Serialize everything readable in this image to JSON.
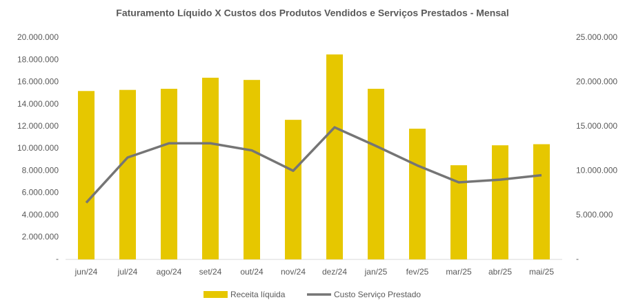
{
  "chart_data": {
    "type": "bar_line",
    "title": "Faturamento Líquido X Custos dos Produtos Vendidos e Serviços Prestados - Mensal",
    "categories": [
      "jun/24",
      "jul/24",
      "ago/24",
      "set/24",
      "out/24",
      "nov/24",
      "dez/24",
      "jan/25",
      "fev/25",
      "mar/25",
      "abr/25",
      "mai/25"
    ],
    "series": [
      {
        "name": "Receita líquida",
        "color": "#e6c700",
        "type": "bar",
        "axis": "y",
        "values": [
          15200000,
          15300000,
          15400000,
          16400000,
          16200000,
          12600000,
          18500000,
          15400000,
          11800000,
          8500000,
          10300000,
          10400000
        ]
      },
      {
        "name": "Custo Serviço Prestado",
        "color": "#757575",
        "type": "line",
        "axis": "y2",
        "values": [
          6400000,
          11500000,
          13100000,
          13100000,
          12300000,
          10000000,
          14900000,
          12800000,
          10600000,
          8700000,
          9000000,
          9500000
        ]
      }
    ],
    "ylim": [
      0,
      20000000
    ],
    "yticks": [
      {
        "value": 0,
        "label": "-"
      },
      {
        "value": 2000000,
        "label": "2.000.000"
      },
      {
        "value": 4000000,
        "label": "4.000.000"
      },
      {
        "value": 6000000,
        "label": "6.000.000"
      },
      {
        "value": 8000000,
        "label": "8.000.000"
      },
      {
        "value": 10000000,
        "label": "10.000.000"
      },
      {
        "value": 12000000,
        "label": "12.000.000"
      },
      {
        "value": 14000000,
        "label": "14.000.000"
      },
      {
        "value": 16000000,
        "label": "16.000.000"
      },
      {
        "value": 18000000,
        "label": "18.000.000"
      },
      {
        "value": 20000000,
        "label": "20.000.000"
      }
    ],
    "y2lim": [
      0,
      25000000
    ],
    "y2ticks": [
      {
        "value": 0,
        "label": "-"
      },
      {
        "value": 5000000,
        "label": "5.000.000"
      },
      {
        "value": 10000000,
        "label": "10.000.000"
      },
      {
        "value": 15000000,
        "label": "15.000.000"
      },
      {
        "value": 20000000,
        "label": "20.000.000"
      },
      {
        "value": 25000000,
        "label": "25.000.000"
      }
    ]
  }
}
